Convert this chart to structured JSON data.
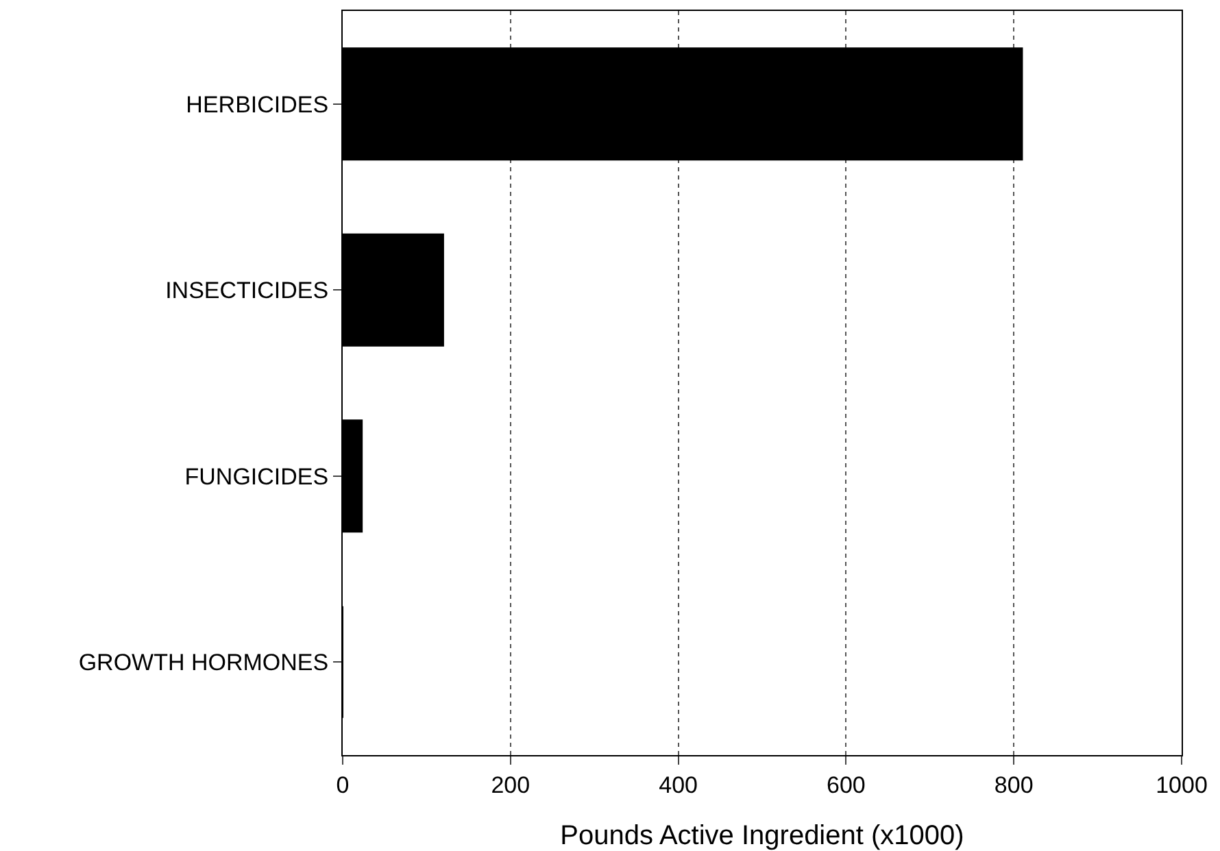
{
  "chart_data": {
    "type": "bar",
    "orientation": "horizontal",
    "xlabel": "Pounds Active Ingredient (x1000)",
    "categories": [
      "HERBICIDES",
      "INSECTICIDES",
      "FUNGICIDES",
      "GROWTH HORMONES"
    ],
    "values": [
      810,
      120,
      23,
      0
    ],
    "color": "#000000",
    "xlim": [
      0,
      1000
    ],
    "xticks": [
      0,
      200,
      400,
      600,
      800,
      1000
    ],
    "grid": "x"
  }
}
